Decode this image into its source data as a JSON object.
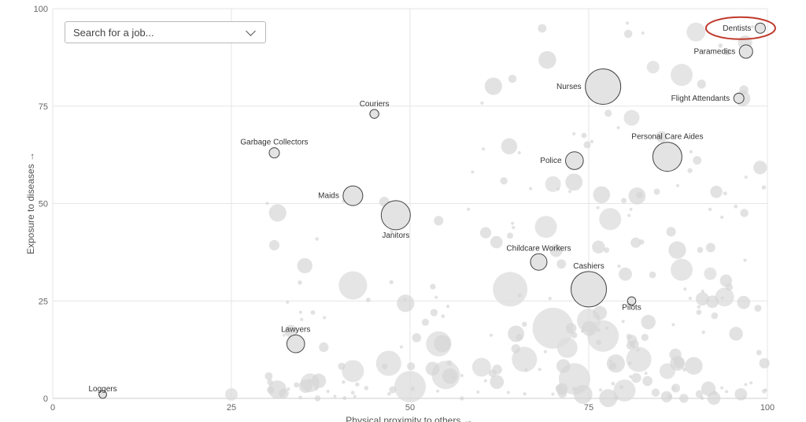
{
  "search": {
    "placeholder": "Search for a job..."
  },
  "chart_data": {
    "type": "scatter",
    "xlabel": "Physical proximity to others →",
    "ylabel": "Exposure to diseases →",
    "xlim": [
      0,
      100
    ],
    "ylim": [
      0,
      100
    ],
    "xticks": [
      0,
      25,
      50,
      75,
      100
    ],
    "yticks": [
      0,
      25,
      50,
      75,
      100
    ],
    "grid": true,
    "highlight_color": "#c0392b",
    "bubble_fill": "#d9d9d9",
    "labeled": [
      {
        "name": "Dentists",
        "x": 99,
        "y": 95,
        "size": 1,
        "highlight": true
      },
      {
        "name": "Paramedics",
        "x": 97,
        "y": 89,
        "size": 1.5
      },
      {
        "name": "Flight Attendants",
        "x": 96,
        "y": 77,
        "size": 1
      },
      {
        "name": "Nurses",
        "x": 77,
        "y": 80,
        "size": 5
      },
      {
        "name": "Couriers",
        "x": 45,
        "y": 73,
        "size": 0.8
      },
      {
        "name": "Garbage Collectors",
        "x": 31,
        "y": 63,
        "size": 1
      },
      {
        "name": "Personal Care Aides",
        "x": 86,
        "y": 62,
        "size": 4
      },
      {
        "name": "Police",
        "x": 73,
        "y": 61,
        "size": 2.2
      },
      {
        "name": "Maids",
        "x": 42,
        "y": 52,
        "size": 2.5
      },
      {
        "name": "Janitors",
        "x": 48,
        "y": 47,
        "size": 4
      },
      {
        "name": "Childcare Workers",
        "x": 68,
        "y": 35,
        "size": 2
      },
      {
        "name": "Cashiers",
        "x": 75,
        "y": 28,
        "size": 5
      },
      {
        "name": "Pilots",
        "x": 81,
        "y": 25,
        "size": 0.7
      },
      {
        "name": "Lawyers",
        "x": 34,
        "y": 14,
        "size": 2.2
      },
      {
        "name": "Loggers",
        "x": 7,
        "y": 1,
        "size": 0.6
      }
    ]
  }
}
